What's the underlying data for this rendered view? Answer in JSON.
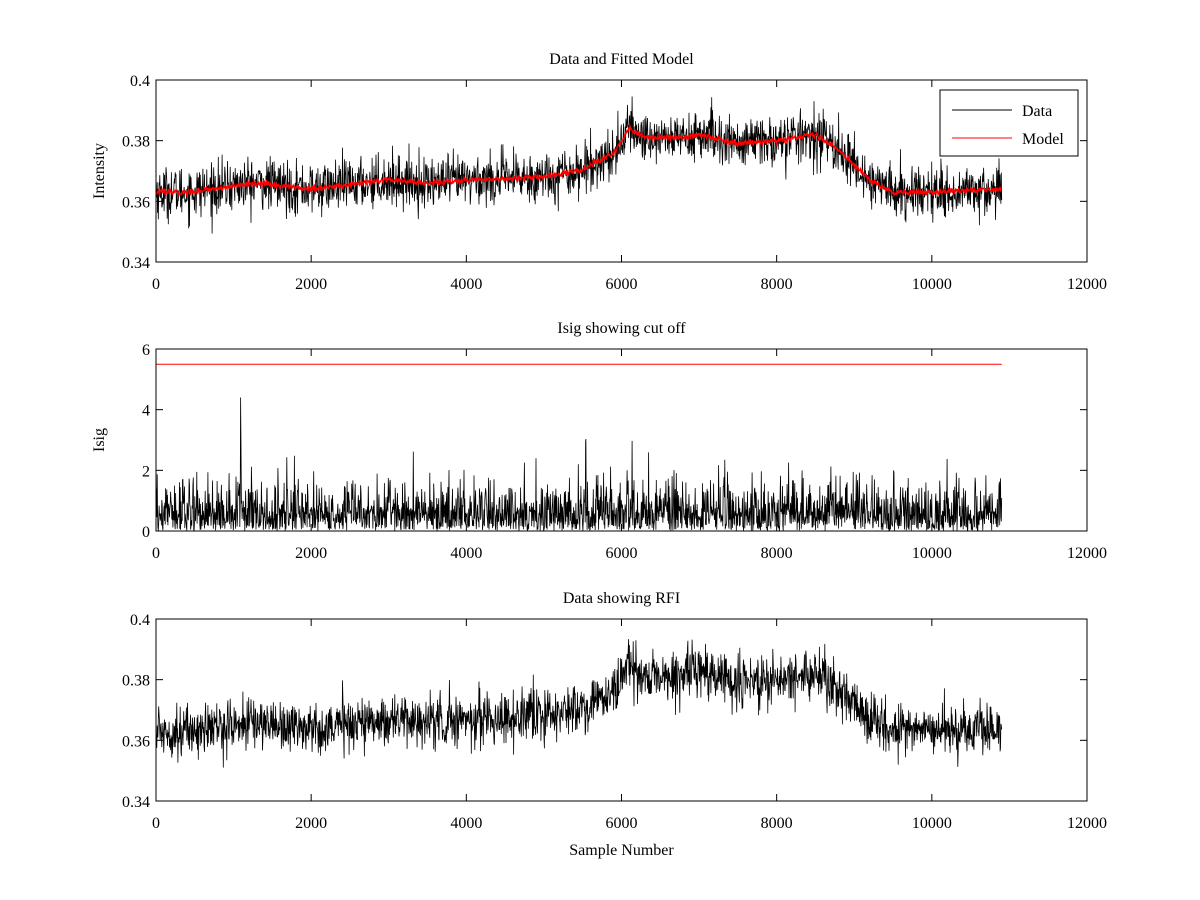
{
  "chart_data": [
    {
      "type": "line",
      "title": "Data and Fitted Model",
      "xlabel": "",
      "ylabel": "Intensity",
      "xlim": [
        0,
        12000
      ],
      "ylim": [
        0.34,
        0.4
      ],
      "xticks": [
        0,
        2000,
        4000,
        6000,
        8000,
        10000,
        12000
      ],
      "xtick_labels": [
        "0",
        "2000",
        "4000",
        "6000",
        "8000",
        "10000",
        "12000"
      ],
      "yticks": [
        0.34,
        0.36,
        0.38,
        0.4
      ],
      "ytick_labels": [
        "0.34",
        "0.36",
        "0.38",
        "0.4"
      ],
      "grid": false,
      "legend": "top-right",
      "series": [
        {
          "name": "Data",
          "color": "#000000",
          "style": "noisy",
          "x_range": [
            0,
            10900
          ],
          "noise": 0.0042,
          "baseline": [
            [
              0,
              0.363
            ],
            [
              400,
              0.363
            ],
            [
              1300,
              0.366
            ],
            [
              2000,
              0.364
            ],
            [
              3000,
              0.367
            ],
            [
              3500,
              0.366
            ],
            [
              4000,
              0.367
            ],
            [
              4500,
              0.3675
            ],
            [
              5000,
              0.368
            ],
            [
              5500,
              0.3705
            ],
            [
              5900,
              0.376
            ],
            [
              6100,
              0.384
            ],
            [
              6300,
              0.381
            ],
            [
              6800,
              0.381
            ],
            [
              7000,
              0.382
            ],
            [
              7500,
              0.379
            ],
            [
              8000,
              0.38
            ],
            [
              8500,
              0.382
            ],
            [
              8800,
              0.377
            ],
            [
              9200,
              0.367
            ],
            [
              9500,
              0.363
            ],
            [
              10000,
              0.363
            ],
            [
              10900,
              0.364
            ]
          ]
        },
        {
          "name": "Model",
          "color": "#ff0000",
          "style": "smooth",
          "x_range": [
            0,
            10900
          ],
          "noise": 0.0005,
          "baseline": [
            [
              0,
              0.363
            ],
            [
              400,
              0.363
            ],
            [
              1300,
              0.366
            ],
            [
              2000,
              0.364
            ],
            [
              3000,
              0.367
            ],
            [
              3500,
              0.366
            ],
            [
              4000,
              0.367
            ],
            [
              4500,
              0.3675
            ],
            [
              5000,
              0.368
            ],
            [
              5500,
              0.3705
            ],
            [
              5900,
              0.376
            ],
            [
              6100,
              0.384
            ],
            [
              6300,
              0.381
            ],
            [
              6800,
              0.381
            ],
            [
              7000,
              0.382
            ],
            [
              7500,
              0.379
            ],
            [
              8000,
              0.38
            ],
            [
              8500,
              0.382
            ],
            [
              8800,
              0.377
            ],
            [
              9200,
              0.367
            ],
            [
              9500,
              0.363
            ],
            [
              10000,
              0.363
            ],
            [
              10900,
              0.364
            ]
          ]
        }
      ]
    },
    {
      "type": "line",
      "title": "Isig showing cut off",
      "xlabel": "",
      "ylabel": "Isig",
      "xlim": [
        0,
        12000
      ],
      "ylim": [
        0,
        6
      ],
      "xticks": [
        0,
        2000,
        4000,
        6000,
        8000,
        10000,
        12000
      ],
      "xtick_labels": [
        "0",
        "2000",
        "4000",
        "6000",
        "8000",
        "10000",
        "12000"
      ],
      "yticks": [
        0,
        2,
        4,
        6
      ],
      "ytick_labels": [
        "0",
        "2",
        "4",
        "6"
      ],
      "grid": false,
      "series": [
        {
          "color": "#000000",
          "style": "abs-noise",
          "x_range": [
            0,
            10900
          ],
          "scale": 0.8,
          "max": 4.4
        },
        {
          "color": "#ff0000",
          "style": "constant",
          "x_range": [
            0,
            10900
          ],
          "value": 5.5
        }
      ]
    },
    {
      "type": "line",
      "title": "Data showing RFI",
      "xlabel": "Sample Number",
      "ylabel": "",
      "xlim": [
        0,
        12000
      ],
      "ylim": [
        0.34,
        0.4
      ],
      "xticks": [
        0,
        2000,
        4000,
        6000,
        8000,
        10000,
        12000
      ],
      "xtick_labels": [
        "0",
        "2000",
        "4000",
        "6000",
        "8000",
        "10000",
        "12000"
      ],
      "yticks": [
        0.34,
        0.36,
        0.38,
        0.4
      ],
      "ytick_labels": [
        "0.34",
        "0.36",
        "0.38",
        "0.4"
      ],
      "grid": false,
      "series": [
        {
          "color": "#000000",
          "style": "noisy",
          "x_range": [
            0,
            10900
          ],
          "noise": 0.0042,
          "baseline": [
            [
              0,
              0.363
            ],
            [
              400,
              0.363
            ],
            [
              1300,
              0.366
            ],
            [
              2000,
              0.364
            ],
            [
              3000,
              0.367
            ],
            [
              3500,
              0.366
            ],
            [
              4000,
              0.367
            ],
            [
              4500,
              0.3675
            ],
            [
              5000,
              0.368
            ],
            [
              5500,
              0.3705
            ],
            [
              5900,
              0.376
            ],
            [
              6100,
              0.384
            ],
            [
              6300,
              0.381
            ],
            [
              6800,
              0.381
            ],
            [
              7000,
              0.382
            ],
            [
              7500,
              0.379
            ],
            [
              8000,
              0.38
            ],
            [
              8500,
              0.382
            ],
            [
              8800,
              0.377
            ],
            [
              9200,
              0.367
            ],
            [
              9500,
              0.363
            ],
            [
              10000,
              0.363
            ],
            [
              10900,
              0.364
            ]
          ]
        }
      ]
    }
  ]
}
